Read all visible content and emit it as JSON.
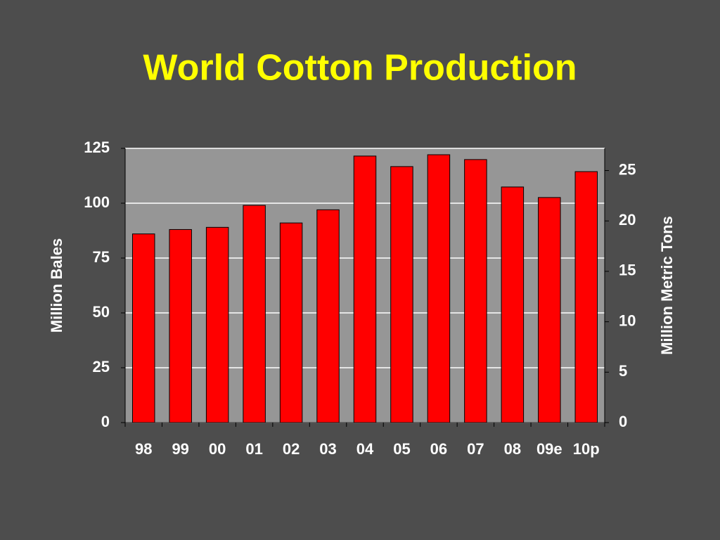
{
  "chart_data": {
    "type": "bar",
    "title": "World Cotton Production",
    "categories": [
      "98",
      "99",
      "00",
      "01",
      "02",
      "03",
      "04",
      "05",
      "06",
      "07",
      "08",
      "09e",
      "10p"
    ],
    "values": [
      86,
      88,
      89,
      99,
      91,
      97,
      121.5,
      116.7,
      122.1,
      119.9,
      107.4,
      102.6,
      114.4
    ],
    "color": "#ff0000",
    "ylabel": "Million Bales",
    "y2label": "Million Metric Tons",
    "ylim": [
      0,
      125
    ],
    "yticks": [
      0,
      25,
      50,
      75,
      100,
      125
    ],
    "y2lim": [
      0,
      27.2
    ],
    "y2ticks": [
      0,
      5,
      10,
      15,
      20,
      25
    ],
    "grid": true
  }
}
